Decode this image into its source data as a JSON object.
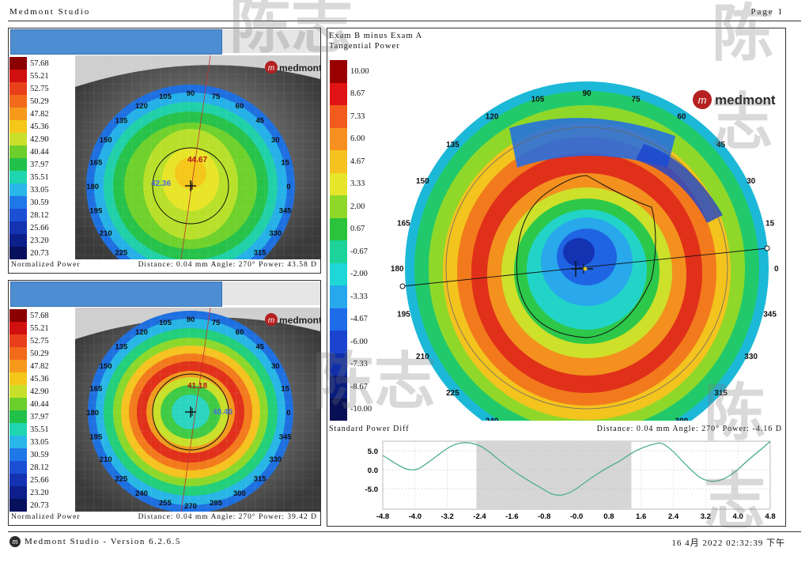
{
  "header": {
    "app": "Medmont Studio",
    "page": "Page 1"
  },
  "logo_text": "medmont",
  "logo_letter": "m",
  "top_left": {
    "legend": [
      "57.68",
      "55.21",
      "52.75",
      "50.29",
      "47.82",
      "45.36",
      "42.90",
      "40.44",
      "37.97",
      "35.51",
      "33.05",
      "30.59",
      "28.12",
      "25.66",
      "23.20",
      "20.73"
    ],
    "map_type": "Normalized Power",
    "status": "Distance: 0.04 mm  Angle: 270°  Power: 43.58 D",
    "value_a": "44.67",
    "value_b": "42.36"
  },
  "bottom_left": {
    "legend": [
      "57.68",
      "55.21",
      "52.75",
      "50.29",
      "47.82",
      "45.36",
      "42.90",
      "40.44",
      "37.97",
      "35.51",
      "33.05",
      "30.59",
      "28.12",
      "25.66",
      "23.20",
      "20.73"
    ],
    "map_type": "Normalized Power",
    "status": "Distance: 0.04 mm  Angle: 270°  Power: 39.42 D",
    "value_a": "41.18",
    "value_b": "40.46"
  },
  "legend_colors": [
    "#8b0000",
    "#d11010",
    "#e8401a",
    "#f26a1a",
    "#f79a1c",
    "#f5c71a",
    "#c9e02a",
    "#6ccf2c",
    "#22c14a",
    "#1fd6b0",
    "#29b6e8",
    "#1f78e8",
    "#1a4fd6",
    "#1333b3",
    "#0c1f8a",
    "#07105c"
  ],
  "diff_legend_colors": [
    "#9a0000",
    "#e01414",
    "#f25a1e",
    "#f8901f",
    "#f5c21f",
    "#e7e52a",
    "#8ed829",
    "#2bc23c",
    "#1dd39a",
    "#1fd7d7",
    "#27a8ec",
    "#1f6ce8",
    "#1a44d0",
    "#1130a8",
    "#0a1d7d",
    "#070f55"
  ],
  "right": {
    "title1": "Exam B minus Exam A",
    "title2": "Tangential Power",
    "legend": [
      "10.00",
      "8.67",
      "7.33",
      "6.00",
      "4.67",
      "3.33",
      "2.00",
      "0.67",
      "-0.67",
      "-2.00",
      "-3.33",
      "-4.67",
      "-6.00",
      "-7.33",
      "-8.67",
      "-10.00"
    ],
    "map_type": "Standard Power Diff",
    "status": "Distance: 0.04 mm  Angle: 270°  Power: -4.16 D",
    "profile_y": [
      "5.0",
      "0.0",
      "-5.0"
    ],
    "profile_x": [
      "-4.8",
      "-4.0",
      "-3.2",
      "-2.4",
      "-1.6",
      "-0.8",
      "-0.0",
      "0.8",
      "1.6",
      "2.4",
      "3.2",
      "4.0",
      "4.8"
    ]
  },
  "angles": [
    "0",
    "15",
    "30",
    "45",
    "60",
    "75",
    "90",
    "105",
    "120",
    "135",
    "150",
    "165",
    "180",
    "195",
    "210",
    "225",
    "240",
    "255",
    "270",
    "285",
    "300",
    "315",
    "330",
    "345"
  ],
  "footer": {
    "version": "Medmont Studio - Version 6.2.6.5",
    "datetime": "16 4月 2022 02:32:39 下午"
  },
  "watermark": "陈志"
}
